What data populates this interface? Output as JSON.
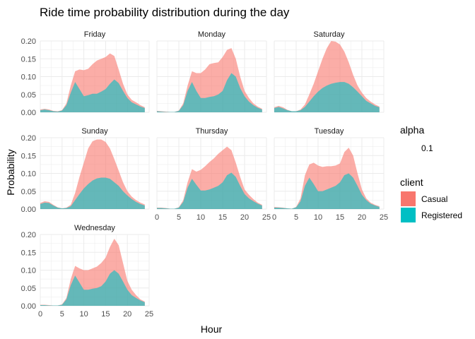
{
  "chart_data": {
    "type": "area",
    "title": "Ride time probability distribution during the day",
    "xlabel": "Hour",
    "ylabel": "Probability",
    "xlim": [
      0,
      25
    ],
    "ylim": [
      0,
      0.2
    ],
    "x_ticks": [
      0,
      5,
      10,
      15,
      20,
      25
    ],
    "y_ticks": [
      0.0,
      0.05,
      0.1,
      0.15,
      0.2
    ],
    "y_tick_labels": [
      "0.00",
      "0.05",
      "0.10",
      "0.15",
      "0.20"
    ],
    "stacked": true,
    "grid": true,
    "legend": {
      "placement": "right",
      "alpha_title": "alpha",
      "alpha_value": "0.1",
      "client_title": "client",
      "entries": [
        {
          "name": "Casual",
          "color": "#F8766D"
        },
        {
          "name": "Registered",
          "color": "#00BFC4"
        }
      ]
    },
    "x": [
      0,
      1,
      2,
      3,
      4,
      5,
      6,
      7,
      8,
      9,
      10,
      11,
      12,
      13,
      14,
      15,
      16,
      17,
      18,
      19,
      20,
      21,
      22,
      23,
      24
    ],
    "panels": [
      {
        "name": "Friday",
        "registered": [
          0.006,
          0.008,
          0.006,
          0.003,
          0.002,
          0.005,
          0.02,
          0.055,
          0.085,
          0.065,
          0.045,
          0.048,
          0.052,
          0.052,
          0.058,
          0.065,
          0.08,
          0.092,
          0.082,
          0.06,
          0.04,
          0.028,
          0.022,
          0.016,
          0.012
        ],
        "total": [
          0.008,
          0.01,
          0.008,
          0.004,
          0.003,
          0.006,
          0.025,
          0.075,
          0.115,
          0.12,
          0.118,
          0.122,
          0.135,
          0.145,
          0.15,
          0.155,
          0.165,
          0.158,
          0.12,
          0.08,
          0.05,
          0.035,
          0.028,
          0.02,
          0.014
        ]
      },
      {
        "name": "Monday",
        "registered": [
          0.003,
          0.002,
          0.001,
          0.001,
          0.001,
          0.004,
          0.02,
          0.06,
          0.085,
          0.06,
          0.04,
          0.04,
          0.043,
          0.045,
          0.05,
          0.06,
          0.09,
          0.11,
          0.1,
          0.068,
          0.045,
          0.03,
          0.02,
          0.013,
          0.008
        ],
        "total": [
          0.004,
          0.003,
          0.002,
          0.001,
          0.001,
          0.005,
          0.025,
          0.075,
          0.115,
          0.11,
          0.11,
          0.12,
          0.135,
          0.138,
          0.14,
          0.155,
          0.175,
          0.18,
          0.15,
          0.1,
          0.06,
          0.04,
          0.025,
          0.016,
          0.01
        ],
        "note": ""
      },
      {
        "name": "Saturday",
        "registered": [
          0.012,
          0.015,
          0.011,
          0.006,
          0.003,
          0.003,
          0.006,
          0.015,
          0.03,
          0.045,
          0.058,
          0.068,
          0.075,
          0.08,
          0.083,
          0.085,
          0.085,
          0.08,
          0.07,
          0.058,
          0.045,
          0.032,
          0.025,
          0.018,
          0.014
        ],
        "total": [
          0.014,
          0.018,
          0.014,
          0.007,
          0.003,
          0.003,
          0.008,
          0.022,
          0.05,
          0.08,
          0.115,
          0.15,
          0.18,
          0.2,
          0.198,
          0.19,
          0.17,
          0.14,
          0.105,
          0.075,
          0.055,
          0.04,
          0.03,
          0.022,
          0.016
        ]
      },
      {
        "name": "Sunday",
        "registered": [
          0.014,
          0.018,
          0.017,
          0.01,
          0.004,
          0.002,
          0.003,
          0.008,
          0.025,
          0.042,
          0.058,
          0.07,
          0.08,
          0.086,
          0.088,
          0.088,
          0.085,
          0.075,
          0.065,
          0.05,
          0.038,
          0.028,
          0.02,
          0.014,
          0.01
        ],
        "total": [
          0.017,
          0.022,
          0.02,
          0.012,
          0.005,
          0.002,
          0.004,
          0.012,
          0.045,
          0.09,
          0.13,
          0.17,
          0.19,
          0.195,
          0.195,
          0.188,
          0.17,
          0.14,
          0.108,
          0.075,
          0.05,
          0.035,
          0.025,
          0.018,
          0.013
        ]
      },
      {
        "name": "Thursday",
        "registered": [
          0.003,
          0.003,
          0.002,
          0.001,
          0.001,
          0.004,
          0.02,
          0.06,
          0.085,
          0.068,
          0.052,
          0.052,
          0.055,
          0.06,
          0.065,
          0.075,
          0.095,
          0.102,
          0.09,
          0.065,
          0.042,
          0.03,
          0.022,
          0.015,
          0.01
        ],
        "total": [
          0.004,
          0.004,
          0.003,
          0.001,
          0.001,
          0.005,
          0.025,
          0.075,
          0.112,
          0.105,
          0.11,
          0.12,
          0.132,
          0.142,
          0.155,
          0.165,
          0.175,
          0.165,
          0.13,
          0.09,
          0.055,
          0.04,
          0.028,
          0.018,
          0.012
        ]
      },
      {
        "name": "Tuesday",
        "registered": [
          0.004,
          0.004,
          0.003,
          0.002,
          0.001,
          0.005,
          0.022,
          0.065,
          0.088,
          0.07,
          0.05,
          0.05,
          0.055,
          0.06,
          0.065,
          0.075,
          0.095,
          0.1,
          0.088,
          0.065,
          0.04,
          0.025,
          0.015,
          0.01,
          0.006
        ],
        "total": [
          0.006,
          0.005,
          0.004,
          0.002,
          0.001,
          0.006,
          0.03,
          0.095,
          0.125,
          0.13,
          0.122,
          0.118,
          0.12,
          0.12,
          0.122,
          0.128,
          0.16,
          0.172,
          0.15,
          0.1,
          0.055,
          0.03,
          0.018,
          0.012,
          0.008
        ]
      },
      {
        "name": "Wednesday",
        "registered": [
          0.002,
          0.002,
          0.001,
          0.001,
          0.001,
          0.003,
          0.018,
          0.058,
          0.085,
          0.065,
          0.045,
          0.045,
          0.048,
          0.05,
          0.055,
          0.068,
          0.09,
          0.1,
          0.09,
          0.068,
          0.045,
          0.03,
          0.022,
          0.015,
          0.01
        ],
        "total": [
          0.003,
          0.003,
          0.002,
          0.001,
          0.001,
          0.004,
          0.022,
          0.075,
          0.112,
          0.105,
          0.1,
          0.1,
          0.105,
          0.11,
          0.12,
          0.135,
          0.165,
          0.188,
          0.17,
          0.12,
          0.07,
          0.045,
          0.03,
          0.018,
          0.012
        ]
      }
    ]
  }
}
